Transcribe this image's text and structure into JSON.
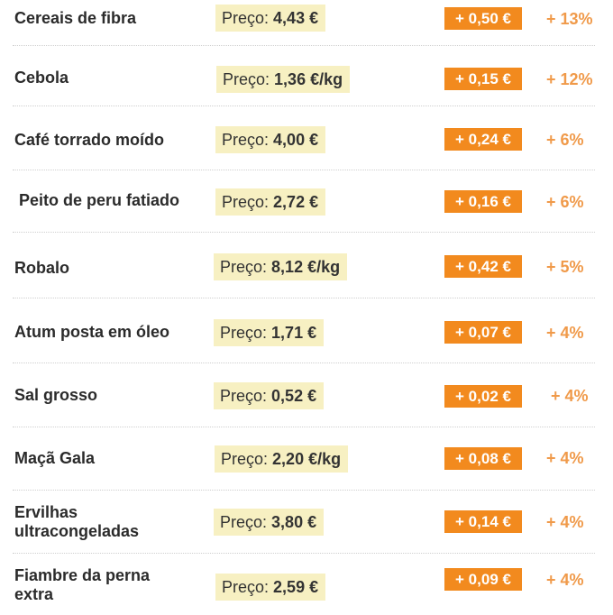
{
  "price_label": "Preço:",
  "items": [
    {
      "name": "Cereais de fibra",
      "price": "4,43 €",
      "delta": "+ 0,50 €",
      "pct": "+ 13%"
    },
    {
      "name": "Cebola",
      "price": "1,36 €/kg",
      "delta": "+ 0,15 €",
      "pct": "+ 12%"
    },
    {
      "name": "Café torrado moído",
      "price": "4,00 €",
      "delta": "+ 0,24 €",
      "pct": "+ 6%"
    },
    {
      "name": " Peito de peru fatiado",
      "price": "2,72 €",
      "delta": "+ 0,16 €",
      "pct": "+ 6%"
    },
    {
      "name": "Robalo",
      "price": "8,12 €/kg",
      "delta": "+ 0,42 €",
      "pct": "+ 5%"
    },
    {
      "name": "Atum posta em óleo",
      "price": "1,71 €",
      "delta": "+ 0,07 €",
      "pct": "+ 4%"
    },
    {
      "name": "Sal grosso",
      "price": "0,52 €",
      "delta": "+ 0,02 €",
      "pct": "+ 4%"
    },
    {
      "name": "Maçã Gala",
      "price": "2,20 €/kg",
      "delta": "+ 0,08 €",
      "pct": "+ 4%"
    },
    {
      "name": "Ervilhas ultracongeladas",
      "price": "3,80 €",
      "delta": "+ 0,14 €",
      "pct": "+ 4%"
    },
    {
      "name": "Fiambre da perna extra",
      "price": "2,59 €",
      "delta": "+ 0,09 €",
      "pct": "+ 4%"
    }
  ]
}
